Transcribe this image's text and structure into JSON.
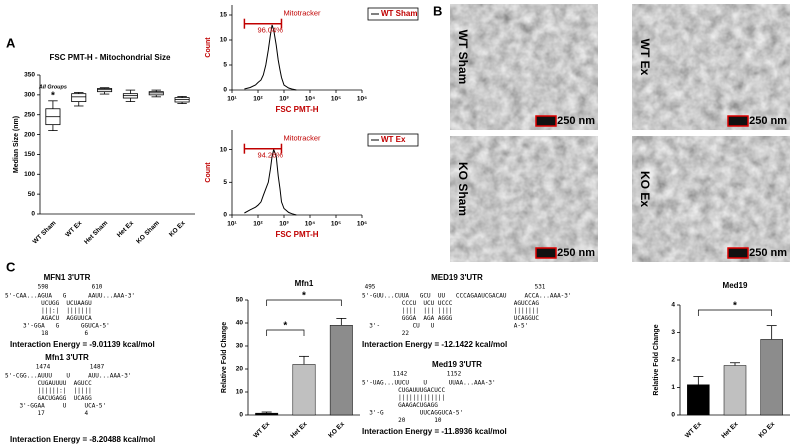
{
  "panels": [
    "A",
    "B",
    "C"
  ],
  "chart_data": [
    {
      "type": "box",
      "title": "FSC PMT-H - Mitochondrial Size",
      "ylabel": "Median Size (nm)",
      "categories": [
        "WT Sham",
        "WT Ex",
        "Het Sham",
        "Het Ex",
        "KO Sham",
        "KO Ex"
      ],
      "boxes": [
        {
          "min": 210,
          "q1": 225,
          "median": 245,
          "q3": 265,
          "max": 285
        },
        {
          "min": 272,
          "q1": 283,
          "median": 295,
          "q3": 303,
          "max": 306
        },
        {
          "min": 302,
          "q1": 308,
          "median": 313,
          "q3": 316,
          "max": 318
        },
        {
          "min": 283,
          "q1": 292,
          "median": 298,
          "q3": 303,
          "max": 312
        },
        {
          "min": 295,
          "q1": 300,
          "median": 305,
          "q3": 308,
          "max": 312
        },
        {
          "min": 278,
          "q1": 282,
          "median": 288,
          "q3": 293,
          "max": 296
        }
      ],
      "annotations": [
        "All Groups",
        "*"
      ],
      "ylim": [
        0,
        350
      ],
      "yticks": [
        0,
        50,
        100,
        150,
        200,
        250,
        300,
        350
      ]
    },
    {
      "type": "line",
      "xlabel": "FSC PMT-H",
      "ylabel": "Count",
      "log_x": true,
      "x": [
        30,
        50,
        80,
        100,
        130,
        160,
        200,
        250,
        300,
        350,
        400,
        500,
        600,
        700,
        800,
        1000,
        1500,
        2000,
        3000
      ],
      "series": [
        {
          "name": "WT Sham",
          "color": "#000000",
          "values": [
            0.2,
            0.5,
            1,
            1.5,
            2,
            3,
            5,
            8,
            11,
            13,
            12,
            9,
            6,
            4,
            2.5,
            1,
            0.4,
            0.2,
            0
          ]
        }
      ],
      "gate": {
        "label": "Mitotracker",
        "value": 96.04,
        "value_label": "96.04%",
        "range": [
          30,
          800
        ],
        "color": "#c00000"
      },
      "xlim": [
        10,
        1000000
      ],
      "xticks": [
        {
          "value": 10,
          "label": "10¹"
        },
        {
          "value": 100,
          "label": "10²"
        },
        {
          "value": 1000,
          "label": "10³"
        },
        {
          "value": 10000,
          "label": "10⁴"
        },
        {
          "value": 100000,
          "label": "10⁵"
        },
        {
          "value": 1000000,
          "label": "10⁶"
        }
      ],
      "ylim": [
        0,
        17
      ],
      "yticks": [
        0,
        5,
        10,
        15
      ]
    },
    {
      "type": "line",
      "xlabel": "FSC PMT-H",
      "ylabel": "Count",
      "log_x": true,
      "x": [
        30,
        50,
        80,
        100,
        130,
        160,
        200,
        250,
        300,
        350,
        400,
        500,
        600,
        700,
        800,
        1000,
        1500,
        2000,
        3000
      ],
      "series": [
        {
          "name": "WT Ex",
          "color": "#000000",
          "values": [
            0.3,
            0.8,
            1.2,
            1.5,
            2,
            3,
            4,
            5,
            7,
            9,
            10,
            9,
            6,
            4,
            2,
            1,
            0.4,
            0.2,
            0
          ]
        }
      ],
      "gate": {
        "label": "Mitotracker",
        "value": 94.26,
        "value_label": "94.26%",
        "range": [
          30,
          800
        ],
        "color": "#c00000"
      },
      "xlim": [
        10,
        1000000
      ],
      "xticks": [
        {
          "value": 10,
          "label": "10¹"
        },
        {
          "value": 100,
          "label": "10²"
        },
        {
          "value": 1000,
          "label": "10³"
        },
        {
          "value": 10000,
          "label": "10⁴"
        },
        {
          "value": 100000,
          "label": "10⁵"
        },
        {
          "value": 1000000,
          "label": "10⁶"
        }
      ],
      "ylim": [
        0,
        13
      ],
      "yticks": [
        0,
        5,
        10
      ]
    },
    {
      "type": "bar",
      "title": "Mfn1",
      "ylabel": "Relative Fold Change",
      "categories": [
        "WT Ex",
        "Het Ex",
        "KO Ex"
      ],
      "values": [
        0.8,
        22,
        39
      ],
      "errors": [
        0.5,
        3.5,
        3
      ],
      "colors": [
        "#000000",
        "#c0c0c0",
        "#8c8c8c"
      ],
      "annotations": [
        "*",
        "*"
      ],
      "ylim": [
        0,
        50
      ],
      "yticks": [
        0,
        10,
        20,
        30,
        40,
        50
      ]
    },
    {
      "type": "bar",
      "title": "Med19",
      "ylabel": "Relative Fold Change",
      "categories": [
        "WT Ex",
        "Het Ex",
        "KO Ex"
      ],
      "values": [
        1.1,
        1.8,
        2.75
      ],
      "errors": [
        0.3,
        0.1,
        0.5
      ],
      "colors": [
        "#000000",
        "#c0c0c0",
        "#8c8c8c"
      ],
      "annotations": [
        "*"
      ],
      "ylim": [
        0,
        4
      ],
      "yticks": [
        0,
        1,
        2,
        3,
        4
      ]
    }
  ],
  "micrographs": [
    {
      "label": "WT Sham",
      "scale": "250 nm"
    },
    {
      "label": "WT Ex",
      "scale": "250 nm"
    },
    {
      "label": "KO Sham",
      "scale": "250 nm"
    },
    {
      "label": "KO Ex",
      "scale": "250 nm"
    }
  ],
  "rna": [
    {
      "title": "MFN1 3'UTR",
      "positions": [
        598,
        610
      ],
      "lines": [
        "5'-CAA...AGUA   G      AAUU...AAA-3'",
        "          UCUGG  UCUAAGU",
        "          |||:|  |||||||",
        "          AGACU  AGGUUCA",
        "     3'-GGA   G      GGUCA-5'",
        "          18          6"
      ],
      "energy": "Interaction Energy = -9.01139 kcal/mol"
    },
    {
      "title": "Mfn1 3'UTR",
      "positions": [
        1474,
        1487
      ],
      "lines": [
        "5'-CGG...AUUU    U     AUU...AAA-3'",
        "         CUGAUUUU  AGUCC",
        "         ||||||:|  |||||",
        "         GACUGAGG  UCAGG",
        "    3'-GGAA     U     UCA-5'",
        "         17           4"
      ],
      "energy": "Interaction Energy = -8.20488 kcal/mol"
    },
    {
      "title": "MED19 3'UTR",
      "positions": [
        495,
        531
      ],
      "lines": [
        "5'-GUU...CUUA   GCU  UU   CCCAGAAUCGACAU     ACCA...AAA-3'",
        "           CCCU  UCU UCCC                 AGUCCAG",
        "           ||||  ||| ||||                 |||||||",
        "           GGGA  AGA AGGG                 UCAGGUC",
        "  3'-         CU   U                      A-5'",
        "           22"
      ],
      "energy": "Interaction Energy = -12.1422 kcal/mol"
    },
    {
      "title": "Med19 3'UTR",
      "positions": [
        1142,
        1152
      ],
      "lines": [
        "5'-UAG...UUCU    U      UUAA...AAA-3'",
        "          CUGAUUUGACUCC",
        "          |||||||||||||",
        "          GAAGACUGAGG",
        "  3'-G          UUCAGGUCA-5'",
        "          20        10"
      ],
      "energy": "Interaction Energy = -11.8936 kcal/mol"
    }
  ]
}
